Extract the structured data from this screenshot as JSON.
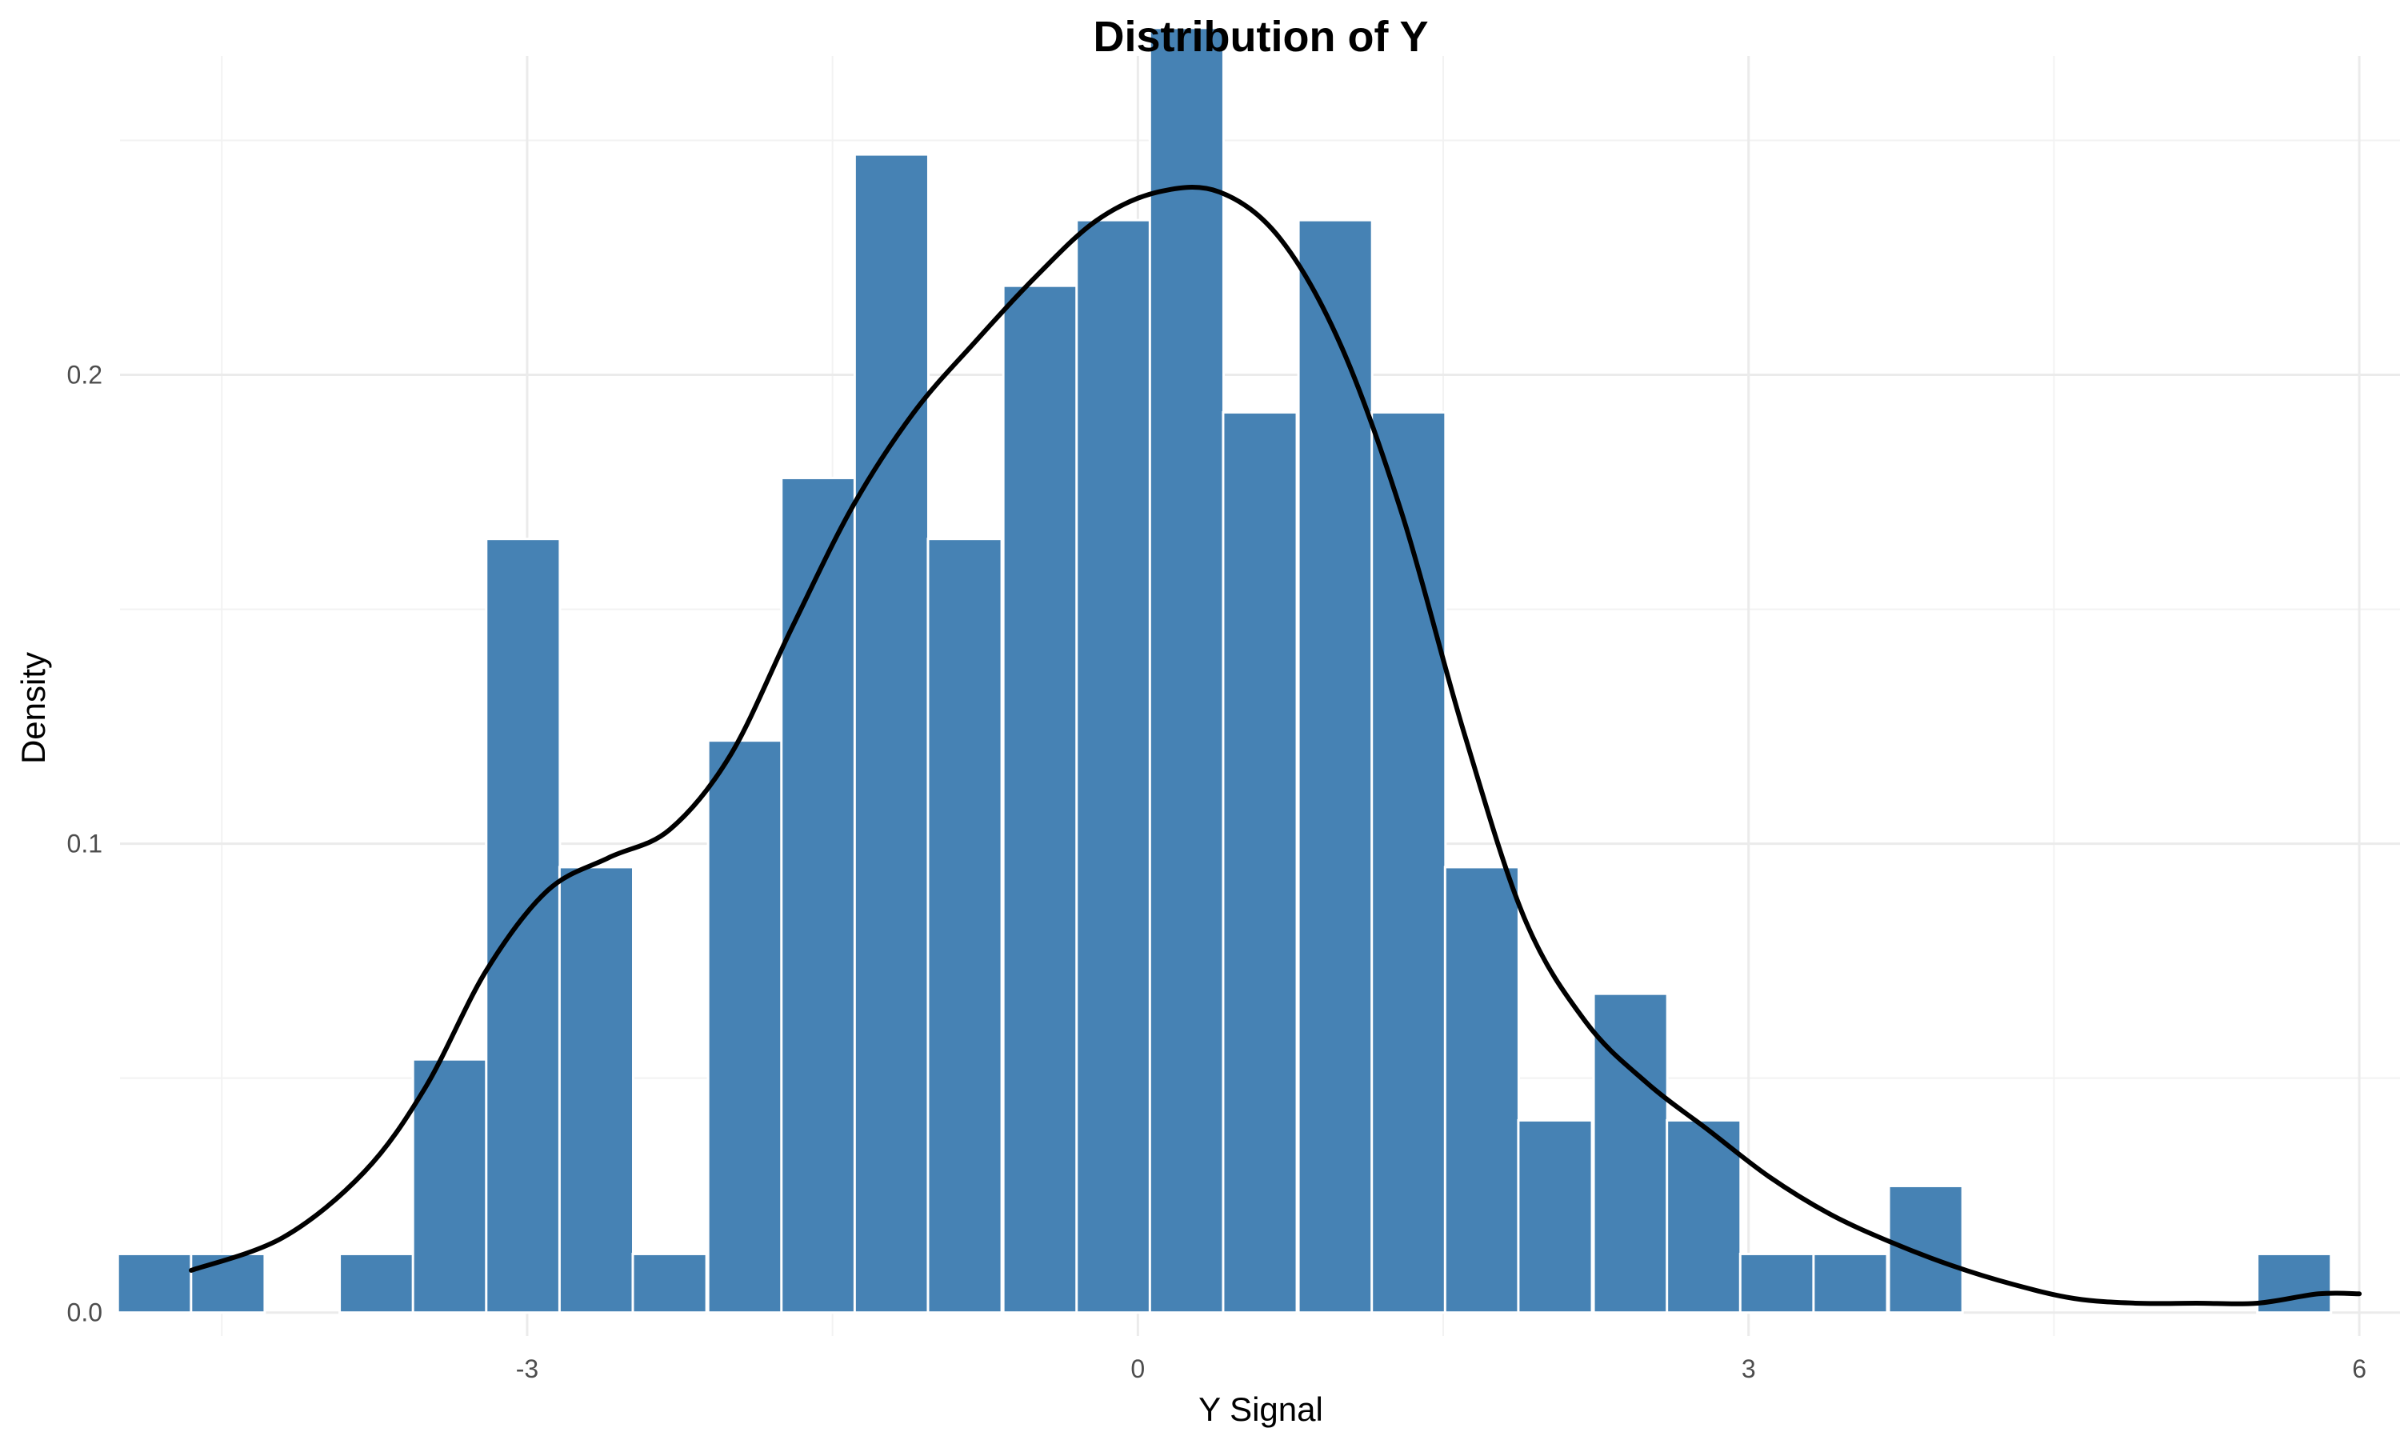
{
  "chart_data": {
    "type": "histogram",
    "title": "Distribution of Y",
    "xlabel": "Y Signal",
    "ylabel": "Density",
    "xlim": [
      -5.0,
      6.2
    ],
    "ylim": [
      -0.005,
      0.268
    ],
    "x_ticks": [
      -3,
      0,
      3,
      6
    ],
    "x_tick_labels": [
      "-3",
      "0",
      "3",
      "6"
    ],
    "x_minor": [
      -4.5,
      -1.5,
      1.5,
      4.5
    ],
    "y_ticks": [
      0.0,
      0.1,
      0.2
    ],
    "y_tick_labels": [
      "0.0",
      "0.1",
      "0.2"
    ],
    "y_minor": [
      0.05,
      0.15,
      0.25
    ],
    "grid": true,
    "bar_color": "#4682b4",
    "bin_width": 0.362,
    "bins": [
      {
        "x": -4.83,
        "density": 0.0125
      },
      {
        "x": -4.47,
        "density": 0.0125
      },
      {
        "x": -4.11,
        "density": 0.0
      },
      {
        "x": -3.74,
        "density": 0.0125
      },
      {
        "x": -3.38,
        "density": 0.054
      },
      {
        "x": -3.02,
        "density": 0.165
      },
      {
        "x": -2.66,
        "density": 0.095
      },
      {
        "x": -2.3,
        "density": 0.0125
      },
      {
        "x": -1.93,
        "density": 0.122
      },
      {
        "x": -1.57,
        "density": 0.178
      },
      {
        "x": -1.21,
        "density": 0.247
      },
      {
        "x": -0.85,
        "density": 0.165
      },
      {
        "x": -0.48,
        "density": 0.219
      },
      {
        "x": -0.12,
        "density": 0.233
      },
      {
        "x": 0.24,
        "density": 0.274
      },
      {
        "x": 0.6,
        "density": 0.192
      },
      {
        "x": 0.97,
        "density": 0.233
      },
      {
        "x": 1.33,
        "density": 0.192
      },
      {
        "x": 1.69,
        "density": 0.095
      },
      {
        "x": 2.05,
        "density": 0.041
      },
      {
        "x": 2.42,
        "density": 0.068
      },
      {
        "x": 2.78,
        "density": 0.041
      },
      {
        "x": 3.14,
        "density": 0.0125
      },
      {
        "x": 3.5,
        "density": 0.0125
      },
      {
        "x": 3.87,
        "density": 0.027
      },
      {
        "x": 4.23,
        "density": 0.0
      },
      {
        "x": 4.59,
        "density": 0.0
      },
      {
        "x": 4.95,
        "density": 0.0
      },
      {
        "x": 5.32,
        "density": 0.0
      },
      {
        "x": 5.68,
        "density": 0.0125
      }
    ],
    "density_curve": {
      "x": [
        -4.65,
        -4.2,
        -3.8,
        -3.5,
        -3.2,
        -2.9,
        -2.6,
        -2.3,
        -2.0,
        -1.7,
        -1.4,
        -1.1,
        -0.8,
        -0.5,
        -0.2,
        0.1,
        0.4,
        0.7,
        1.0,
        1.3,
        1.6,
        1.9,
        2.2,
        2.5,
        2.8,
        3.1,
        3.4,
        3.7,
        4.0,
        4.3,
        4.6,
        4.9,
        5.2,
        5.5,
        5.8,
        6.0
      ],
      "y": [
        0.009,
        0.016,
        0.03,
        0.048,
        0.073,
        0.09,
        0.097,
        0.103,
        0.119,
        0.146,
        0.172,
        0.192,
        0.207,
        0.221,
        0.233,
        0.239,
        0.239,
        0.229,
        0.206,
        0.17,
        0.124,
        0.084,
        0.062,
        0.049,
        0.039,
        0.029,
        0.021,
        0.015,
        0.01,
        0.006,
        0.003,
        0.002,
        0.002,
        0.002,
        0.004,
        0.004
      ]
    }
  }
}
